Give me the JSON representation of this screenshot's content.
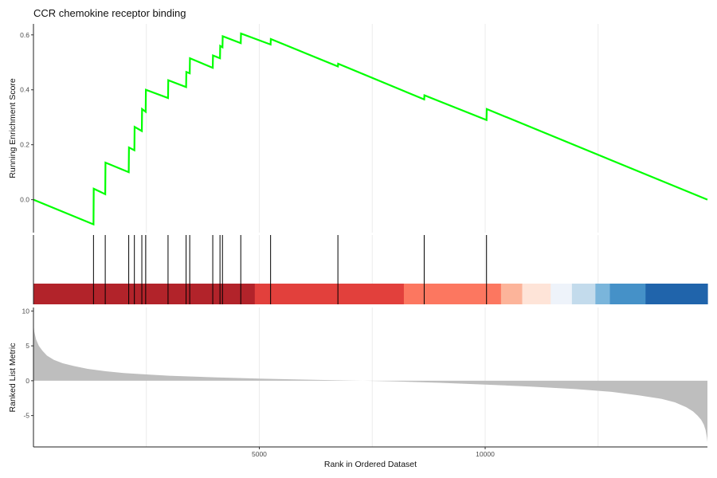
{
  "chart_data": {
    "type": "line",
    "title": "CCR chemokine receptor binding",
    "xlabel": "Rank in Ordered Dataset",
    "x_range": [
      1,
      14920
    ],
    "x_ticks": [
      5000,
      10000
    ],
    "grid": "vertical gridlines only",
    "panels": {
      "enrichment": {
        "ylabel": "Running Enrichment Score",
        "ylim": [
          -0.12,
          0.64
        ],
        "y_ticks": [
          0.0,
          0.2,
          0.4,
          0.6
        ],
        "line_color": "#00ff00",
        "x": [
          1,
          1330,
          1335,
          1590,
          1595,
          2110,
          2115,
          2235,
          2240,
          2400,
          2405,
          2485,
          2490,
          2980,
          2985,
          3380,
          3385,
          3460,
          3465,
          3970,
          3975,
          4130,
          4135,
          4185,
          4190,
          4590,
          4595,
          5250,
          5255,
          6740,
          6745,
          8650,
          8655,
          10030,
          10035,
          14920
        ],
        "y": [
          0.0,
          -0.09,
          0.04,
          0.02,
          0.135,
          0.1,
          0.19,
          0.18,
          0.265,
          0.25,
          0.33,
          0.32,
          0.4,
          0.37,
          0.435,
          0.41,
          0.465,
          0.46,
          0.515,
          0.48,
          0.525,
          0.515,
          0.56,
          0.555,
          0.595,
          0.57,
          0.605,
          0.565,
          0.585,
          0.485,
          0.495,
          0.365,
          0.38,
          0.29,
          0.33,
          0.0
        ]
      },
      "hits": {
        "positions": [
          1330,
          1590,
          2110,
          2235,
          2400,
          2485,
          2980,
          3380,
          3460,
          3970,
          4130,
          4185,
          4590,
          5250,
          6740,
          8650,
          10030
        ],
        "color": "#000000"
      },
      "rank_bar": {
        "segments": [
          {
            "start": 0,
            "end": 4900,
            "color": "#b2232a"
          },
          {
            "start": 4900,
            "end": 8200,
            "color": "#e2403c"
          },
          {
            "start": 8200,
            "end": 10350,
            "color": "#fc7760"
          },
          {
            "start": 10350,
            "end": 10820,
            "color": "#fcb49a"
          },
          {
            "start": 10820,
            "end": 11450,
            "color": "#fee4d8"
          },
          {
            "start": 11450,
            "end": 11920,
            "color": "#eef3fa"
          },
          {
            "start": 11920,
            "end": 12440,
            "color": "#c3dbec"
          },
          {
            "start": 12440,
            "end": 12760,
            "color": "#7ab5db"
          },
          {
            "start": 12760,
            "end": 13550,
            "color": "#4591c8"
          },
          {
            "start": 13550,
            "end": 14920,
            "color": "#2064ab"
          }
        ]
      },
      "ranked_metric": {
        "ylabel": "Ranked List Metric",
        "ylim": [
          -9.5,
          10.5
        ],
        "y_ticks": [
          -5,
          0,
          5,
          10
        ],
        "fill_color": "#bebebe",
        "x": [
          0,
          20,
          60,
          120,
          200,
          300,
          450,
          650,
          900,
          1200,
          1600,
          2000,
          2500,
          3000,
          4000,
          5000,
          6000,
          7000,
          7300,
          8000,
          9000,
          10000,
          11000,
          12000,
          12800,
          13400,
          13900,
          14200,
          14450,
          14600,
          14700,
          14780,
          14840,
          14880,
          14910,
          14920
        ],
        "y": [
          8.2,
          7.0,
          5.9,
          5.0,
          4.3,
          3.6,
          3.0,
          2.5,
          2.1,
          1.7,
          1.35,
          1.1,
          0.9,
          0.72,
          0.48,
          0.3,
          0.15,
          0.03,
          0.0,
          -0.1,
          -0.3,
          -0.55,
          -0.85,
          -1.2,
          -1.6,
          -2.1,
          -2.6,
          -3.1,
          -3.8,
          -4.4,
          -5.0,
          -5.6,
          -6.3,
          -7.1,
          -8.2,
          -8.8
        ]
      }
    }
  }
}
